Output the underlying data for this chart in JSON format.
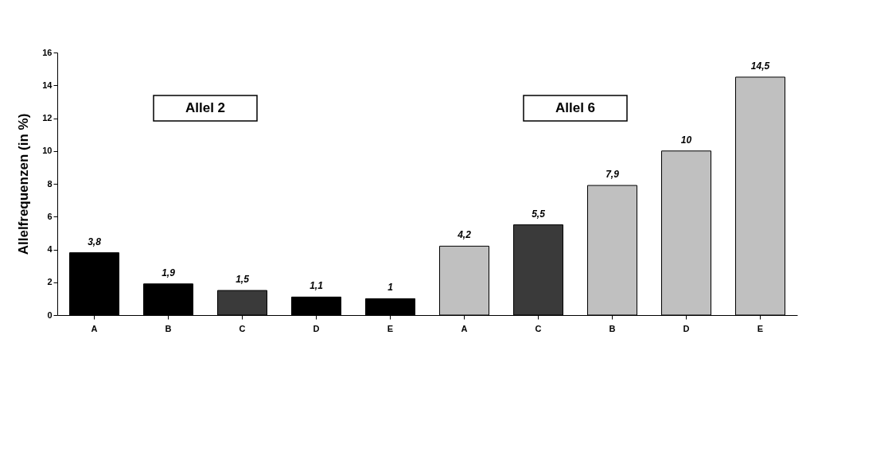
{
  "chart_data": {
    "type": "bar",
    "ylabel": "Allelfrequenzen (in %)",
    "categories": [
      "A",
      "B",
      "C",
      "D",
      "E",
      "A",
      "C",
      "B",
      "D",
      "E"
    ],
    "values": [
      3.8,
      1.9,
      1.5,
      1.1,
      1,
      4.2,
      5.5,
      7.9,
      10,
      14.5
    ],
    "colors": [
      "#000000",
      "#000000",
      "#3a3a3a",
      "#000000",
      "#000000",
      "#c0c0c0",
      "#3a3a3a",
      "#c0c0c0",
      "#c0c0c0",
      "#c0c0c0"
    ],
    "value_labels": [
      "3,8",
      "1,9",
      "1,5",
      "1,1",
      "1",
      "4,2",
      "5,5",
      "7,9",
      "10",
      "14,5"
    ],
    "ylim": [
      0,
      16
    ],
    "yticks": [
      0,
      2,
      4,
      6,
      8,
      10,
      12,
      14,
      16
    ],
    "grid": false,
    "annotations": [
      "Allel 2",
      "Allel 6"
    ]
  }
}
